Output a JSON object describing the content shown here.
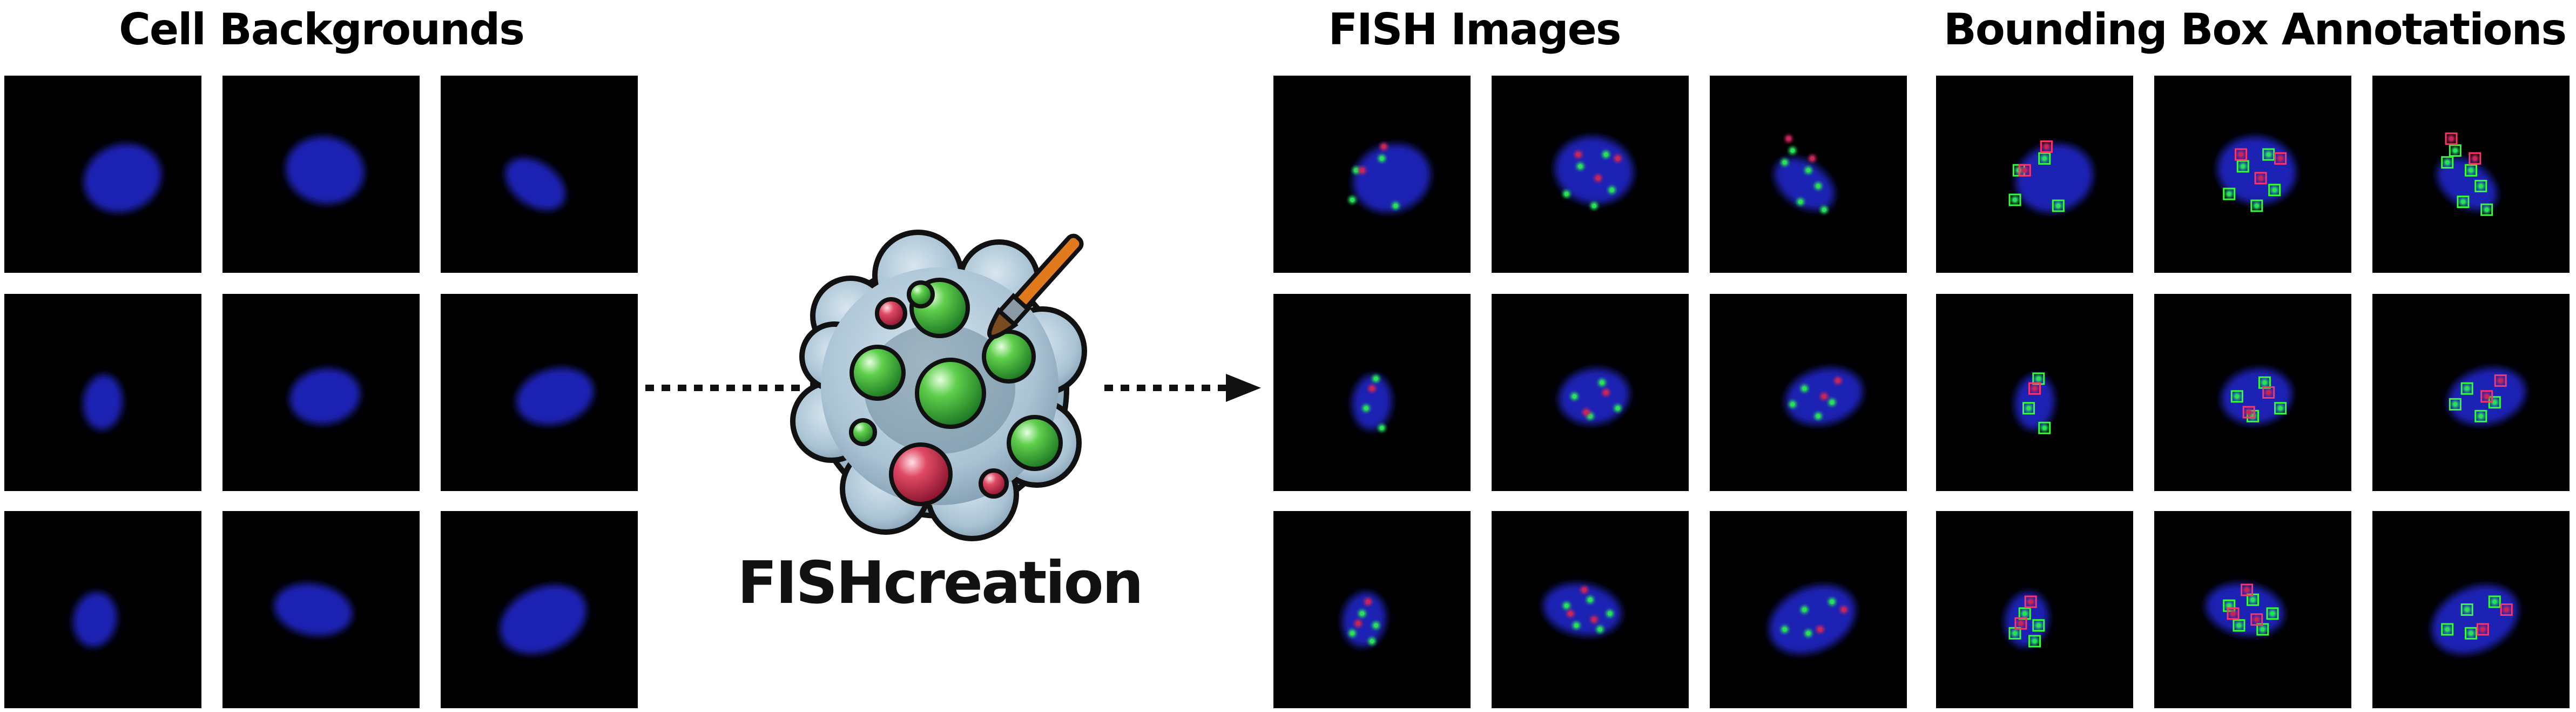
{
  "titles": {
    "cell_backgrounds": "Cell Backgrounds",
    "fish_images": "FISH Images",
    "bbox_annotations": "Bounding Box Annotations"
  },
  "brand": {
    "name": "FISHcreation",
    "logo_icon": "palette-brush-icon"
  },
  "colors": {
    "nucleus": "#1c22b4",
    "spot_green": "#28e05a",
    "spot_red": "#c8265a",
    "box_green": "#33ff33",
    "box_red": "#ff3366",
    "arrow": "#111111"
  },
  "cells": [
    {
      "shape": [
        0.6,
        0.52,
        0.2,
        0.17,
        -20
      ],
      "green": [
        [
          0.55,
          0.42
        ],
        [
          0.42,
          0.48
        ],
        [
          0.62,
          0.66
        ],
        [
          0.4,
          0.63
        ]
      ],
      "red": [
        [
          0.56,
          0.36
        ],
        [
          0.45,
          0.48
        ]
      ]
    },
    {
      "shape": [
        0.52,
        0.48,
        0.2,
        0.17,
        10
      ],
      "green": [
        [
          0.45,
          0.46
        ],
        [
          0.58,
          0.4
        ],
        [
          0.52,
          0.66
        ],
        [
          0.38,
          0.6
        ],
        [
          0.61,
          0.58
        ]
      ],
      "red": [
        [
          0.64,
          0.42
        ],
        [
          0.54,
          0.52
        ],
        [
          0.44,
          0.4
        ]
      ]
    },
    {
      "shape": [
        0.48,
        0.55,
        0.17,
        0.11,
        35
      ],
      "green": [
        [
          0.42,
          0.38
        ],
        [
          0.5,
          0.48
        ],
        [
          0.55,
          0.56
        ],
        [
          0.46,
          0.64
        ],
        [
          0.58,
          0.68
        ],
        [
          0.38,
          0.44
        ]
      ],
      "red": [
        [
          0.4,
          0.32
        ],
        [
          0.52,
          0.42
        ]
      ]
    },
    {
      "shape": [
        0.5,
        0.55,
        0.1,
        0.14,
        5
      ],
      "green": [
        [
          0.52,
          0.43
        ],
        [
          0.47,
          0.58
        ],
        [
          0.55,
          0.68
        ]
      ],
      "red": [
        [
          0.5,
          0.48
        ]
      ]
    },
    {
      "shape": [
        0.52,
        0.52,
        0.18,
        0.14,
        -10
      ],
      "green": [
        [
          0.42,
          0.52
        ],
        [
          0.56,
          0.45
        ],
        [
          0.5,
          0.62
        ],
        [
          0.64,
          0.58
        ]
      ],
      "red": [
        [
          0.58,
          0.5
        ],
        [
          0.48,
          0.6
        ]
      ]
    },
    {
      "shape": [
        0.58,
        0.52,
        0.2,
        0.14,
        -15
      ],
      "green": [
        [
          0.48,
          0.48
        ],
        [
          0.62,
          0.55
        ],
        [
          0.55,
          0.62
        ],
        [
          0.42,
          0.56
        ]
      ],
      "red": [
        [
          0.65,
          0.44
        ],
        [
          0.58,
          0.52
        ]
      ]
    },
    {
      "shape": [
        0.46,
        0.55,
        0.11,
        0.14,
        10
      ],
      "green": [
        [
          0.45,
          0.52
        ],
        [
          0.4,
          0.62
        ],
        [
          0.5,
          0.66
        ],
        [
          0.52,
          0.58
        ]
      ],
      "red": [
        [
          0.48,
          0.46
        ],
        [
          0.43,
          0.57
        ]
      ]
    },
    {
      "shape": [
        0.46,
        0.5,
        0.2,
        0.13,
        10
      ],
      "green": [
        [
          0.38,
          0.48
        ],
        [
          0.5,
          0.45
        ],
        [
          0.55,
          0.6
        ],
        [
          0.43,
          0.58
        ],
        [
          0.6,
          0.52
        ]
      ],
      "red": [
        [
          0.47,
          0.4
        ],
        [
          0.52,
          0.55
        ],
        [
          0.4,
          0.52
        ]
      ]
    },
    {
      "shape": [
        0.52,
        0.55,
        0.23,
        0.16,
        -25
      ],
      "green": [
        [
          0.38,
          0.6
        ],
        [
          0.5,
          0.62
        ],
        [
          0.62,
          0.46
        ],
        [
          0.48,
          0.5
        ]
      ],
      "red": [
        [
          0.68,
          0.5
        ],
        [
          0.56,
          0.6
        ]
      ]
    }
  ]
}
